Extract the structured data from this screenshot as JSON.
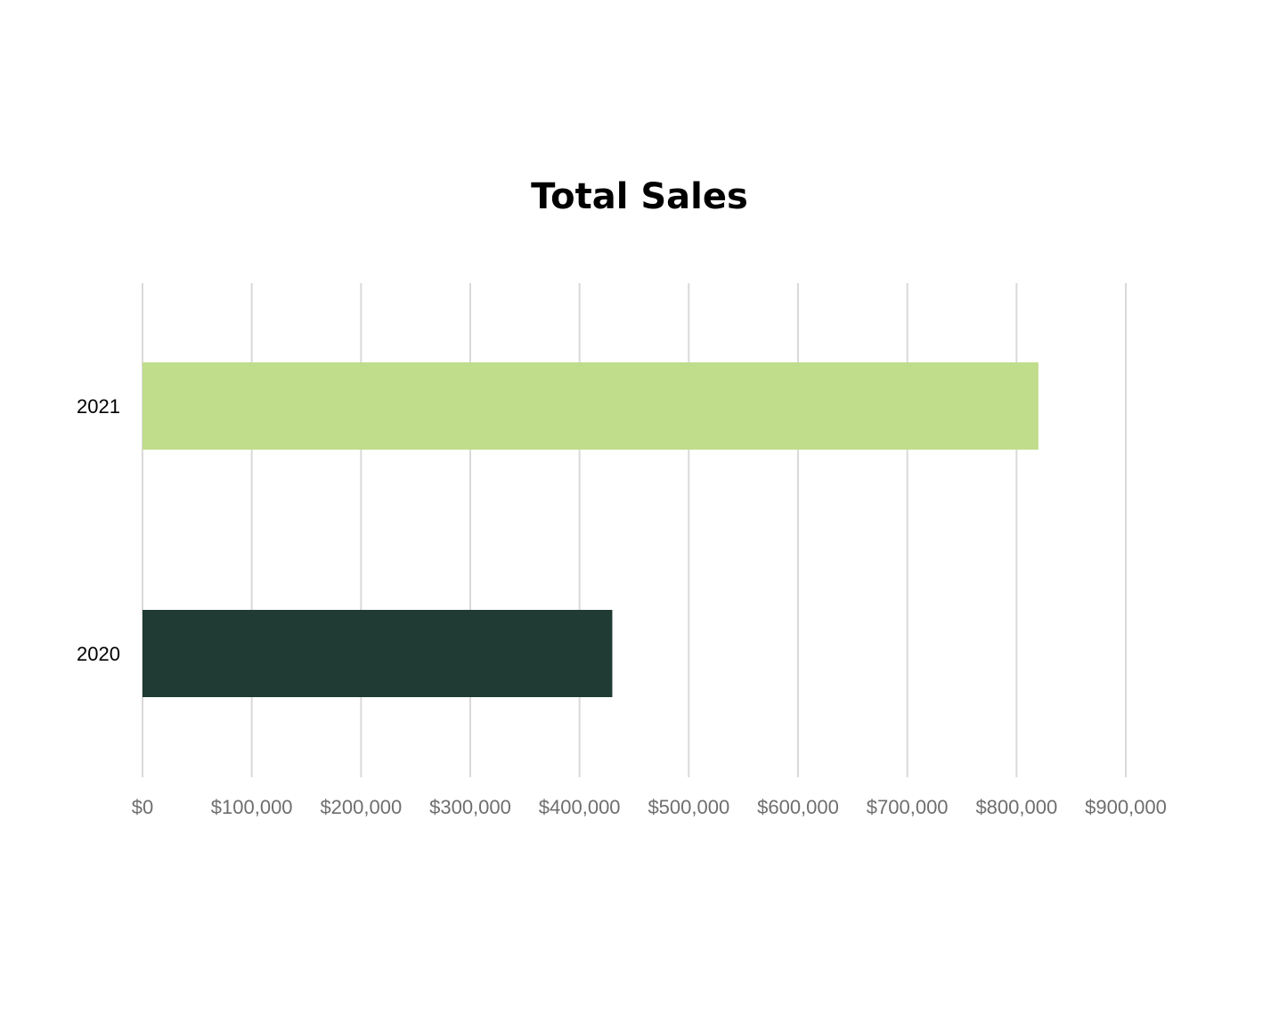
{
  "chart_data": {
    "type": "bar",
    "orientation": "horizontal",
    "title": "Total Sales",
    "xlabel": "",
    "ylabel": "",
    "categories": [
      "2021",
      "2020"
    ],
    "values": [
      820000,
      430000
    ],
    "colors": [
      "#bfdd8a",
      "#1f3b33"
    ],
    "xlim": [
      0,
      900000
    ],
    "x_ticks": [
      0,
      100000,
      200000,
      300000,
      400000,
      500000,
      600000,
      700000,
      800000,
      900000
    ],
    "x_tick_labels": [
      "$0",
      "$100,000",
      "$200,000",
      "$300,000",
      "$400,000",
      "$500,000",
      "$600,000",
      "$700,000",
      "$800,000",
      "$900,000"
    ],
    "grid": "vertical",
    "legend": "none"
  }
}
